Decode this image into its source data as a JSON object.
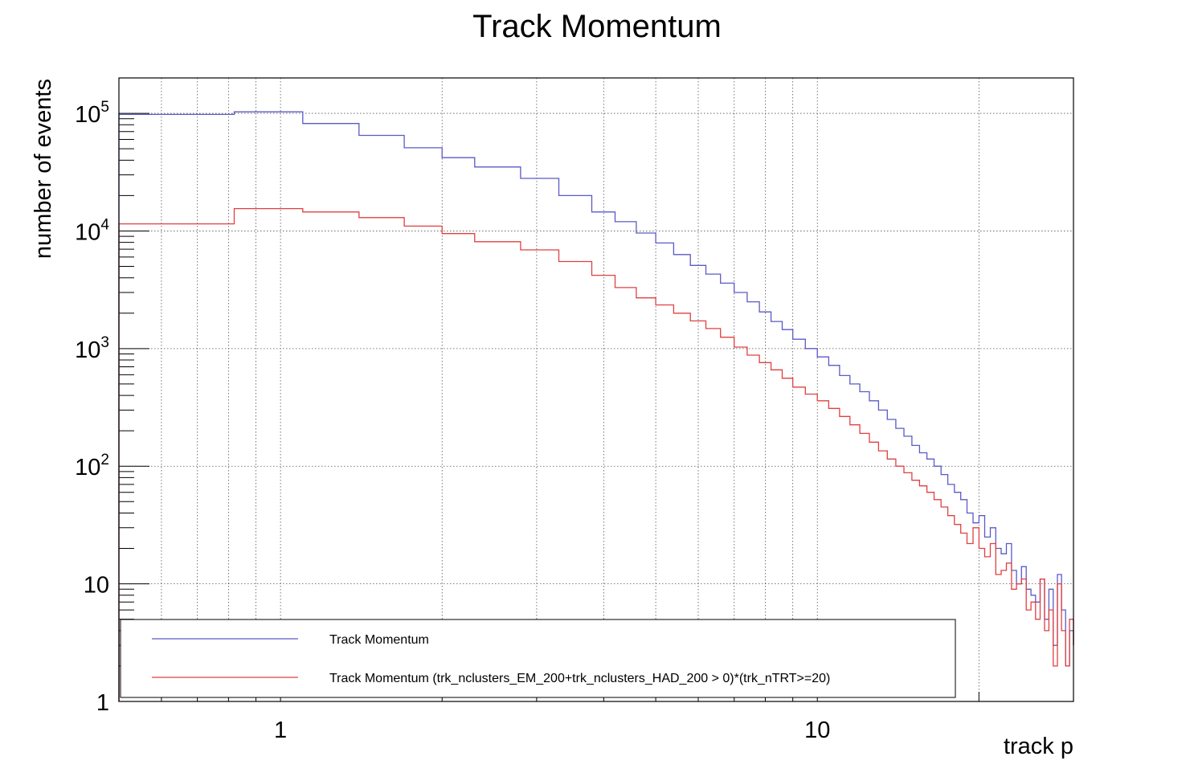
{
  "chart_data": {
    "type": "line",
    "title": "Track Momentum",
    "xlabel": "track p",
    "ylabel": "number of events",
    "xscale": "log",
    "yscale": "log",
    "xlim": [
      0.5,
      30
    ],
    "ylim": [
      1,
      200000
    ],
    "grid": true,
    "legend_position": "bottom-left",
    "x_tick_labels": [
      {
        "value": 1,
        "label": "1"
      },
      {
        "value": 10,
        "label": "10"
      }
    ],
    "y_tick_labels": [
      {
        "value": 1,
        "base": "1",
        "exp": ""
      },
      {
        "value": 10,
        "base": "10",
        "exp": ""
      },
      {
        "value": 100,
        "base": "10",
        "exp": "2"
      },
      {
        "value": 1000,
        "base": "10",
        "exp": "3"
      },
      {
        "value": 10000,
        "base": "10",
        "exp": "4"
      },
      {
        "value": 100000,
        "base": "10",
        "exp": "5"
      }
    ],
    "series": [
      {
        "name": "Track Momentum",
        "color": "#5a5ac8",
        "x": [
          0.5,
          0.82,
          1.1,
          1.4,
          1.7,
          2.0,
          2.3,
          2.8,
          3.3,
          3.8,
          4.2,
          4.6,
          5.0,
          5.4,
          5.8,
          6.2,
          6.6,
          7.0,
          7.4,
          7.8,
          8.2,
          8.6,
          9.0,
          9.5,
          10.0,
          10.5,
          11.0,
          11.5,
          12.0,
          12.5,
          13.0,
          13.5,
          14.0,
          14.5,
          15.0,
          15.5,
          16.0,
          16.5,
          17.0,
          17.5,
          18.0,
          18.5,
          19.0,
          19.5,
          20.0,
          20.5,
          21.0,
          21.5,
          22.0,
          22.5,
          23.0,
          23.5,
          24.0,
          24.5,
          25.0,
          25.5,
          26.0,
          26.5,
          27.0,
          27.5,
          28.0,
          28.5,
          29.0,
          29.5,
          30.0
        ],
        "y": [
          98000,
          103000,
          82000,
          65000,
          51000,
          42000,
          35000,
          28000,
          20000,
          14500,
          12000,
          9600,
          7900,
          6300,
          5100,
          4300,
          3600,
          3000,
          2500,
          2050,
          1700,
          1450,
          1200,
          1000,
          850,
          720,
          590,
          500,
          430,
          360,
          300,
          250,
          210,
          180,
          150,
          130,
          115,
          100,
          85,
          70,
          60,
          52,
          40,
          33,
          38,
          25,
          30,
          20,
          18,
          22,
          13,
          10,
          14,
          9,
          8,
          7,
          11,
          5,
          9,
          3,
          12,
          6,
          2,
          4,
          3
        ],
        "values": [
          98000,
          103000,
          82000,
          65000,
          51000,
          42000,
          35000,
          28000,
          20000,
          14500,
          12000,
          9600,
          7900,
          6300,
          5100,
          4300,
          3600,
          3000,
          2500,
          2050,
          1700,
          1450,
          1200,
          1000,
          850,
          720,
          590,
          500,
          430,
          360,
          300,
          250,
          210,
          180,
          150,
          130,
          115,
          100,
          85,
          70,
          60,
          52,
          40,
          33,
          38,
          25,
          30,
          20,
          18,
          22,
          13,
          10,
          14,
          9,
          8,
          7,
          11,
          5,
          9,
          3,
          12,
          6,
          2,
          4,
          3
        ]
      },
      {
        "name": "Track Momentum (trk_nclusters_EM_200+trk_nclusters_HAD_200 > 0)*(trk_nTRT>=20)",
        "color": "#e04040",
        "x": [
          0.5,
          0.82,
          1.1,
          1.4,
          1.7,
          2.0,
          2.3,
          2.8,
          3.3,
          3.8,
          4.2,
          4.6,
          5.0,
          5.4,
          5.8,
          6.2,
          6.6,
          7.0,
          7.4,
          7.8,
          8.2,
          8.6,
          9.0,
          9.5,
          10.0,
          10.5,
          11.0,
          11.5,
          12.0,
          12.5,
          13.0,
          13.5,
          14.0,
          14.5,
          15.0,
          15.5,
          16.0,
          16.5,
          17.0,
          17.5,
          18.0,
          18.5,
          19.0,
          19.5,
          20.0,
          20.5,
          21.0,
          21.5,
          22.0,
          22.5,
          23.0,
          23.5,
          24.0,
          24.5,
          25.0,
          25.5,
          26.0,
          26.5,
          27.0,
          27.5,
          28.0,
          28.5,
          29.0,
          29.5,
          30.0
        ],
        "y": [
          11500,
          15500,
          14500,
          13000,
          11000,
          9500,
          8100,
          6900,
          5500,
          4200,
          3300,
          2700,
          2350,
          2000,
          1720,
          1480,
          1250,
          1030,
          880,
          760,
          660,
          560,
          470,
          410,
          360,
          310,
          265,
          225,
          190,
          160,
          135,
          115,
          100,
          88,
          76,
          68,
          60,
          52,
          45,
          38,
          32,
          27,
          22,
          30,
          20,
          17,
          22,
          12,
          13,
          15,
          9,
          10,
          11,
          6,
          7,
          5,
          11,
          4,
          6,
          2,
          10,
          4,
          2,
          5,
          3
        ],
        "values": [
          11500,
          15500,
          14500,
          13000,
          11000,
          9500,
          8100,
          6900,
          5500,
          4200,
          3300,
          2700,
          2350,
          2000,
          1720,
          1480,
          1250,
          1030,
          880,
          760,
          660,
          560,
          470,
          410,
          360,
          310,
          265,
          225,
          190,
          160,
          135,
          115,
          100,
          88,
          76,
          68,
          60,
          52,
          45,
          38,
          32,
          27,
          22,
          30,
          20,
          17,
          22,
          12,
          13,
          15,
          9,
          10,
          11,
          6,
          7,
          5,
          11,
          4,
          6,
          2,
          10,
          4,
          2,
          5,
          3
        ]
      }
    ]
  }
}
